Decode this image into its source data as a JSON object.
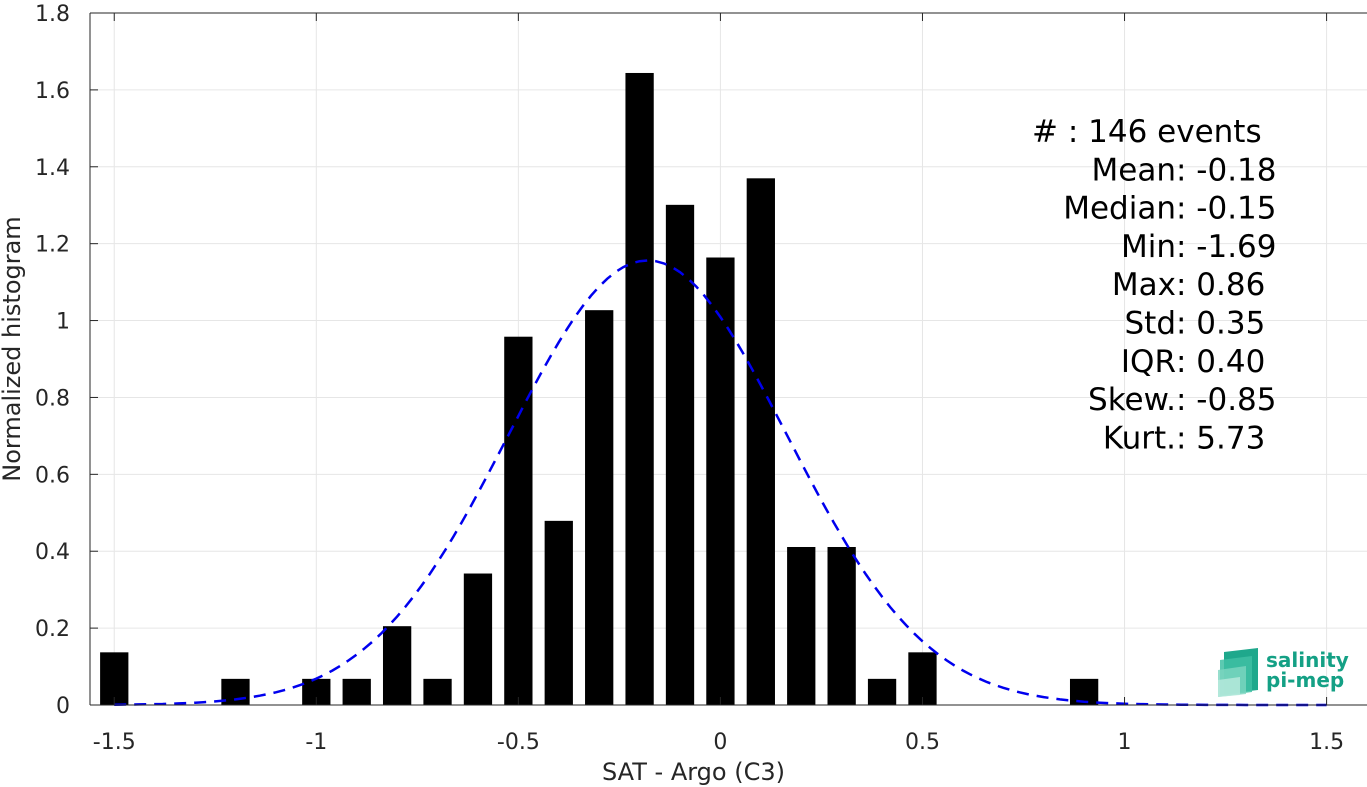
{
  "chart_data": {
    "type": "bar",
    "xlabel": "SAT - Argo (C3)",
    "ylabel": "Normalized histogram",
    "xlim": [
      -1.56,
      1.6
    ],
    "ylim": [
      0,
      1.8
    ],
    "xticks": [
      -1.5,
      -1,
      -0.5,
      0,
      0.5,
      1,
      1.5
    ],
    "xtick_labels": [
      "-1.5",
      "-1",
      "-0.5",
      "0",
      "0.5",
      "1",
      "1.5"
    ],
    "yticks": [
      0,
      0.2,
      0.4,
      0.6,
      0.8,
      1,
      1.2,
      1.4,
      1.6,
      1.8
    ],
    "ytick_labels": [
      "0",
      "0.2",
      "0.4",
      "0.6",
      "0.8",
      "1",
      "1.2",
      "1.4",
      "1.6",
      "1.8"
    ],
    "grid": true,
    "bar_width": 0.07,
    "bars": [
      {
        "x": -1.5,
        "y": 0.137
      },
      {
        "x": -1.2,
        "y": 0.068
      },
      {
        "x": -1.0,
        "y": 0.068
      },
      {
        "x": -0.9,
        "y": 0.068
      },
      {
        "x": -0.8,
        "y": 0.205
      },
      {
        "x": -0.7,
        "y": 0.068
      },
      {
        "x": -0.6,
        "y": 0.342
      },
      {
        "x": -0.5,
        "y": 0.958
      },
      {
        "x": -0.4,
        "y": 0.479
      },
      {
        "x": -0.3,
        "y": 1.027
      },
      {
        "x": -0.2,
        "y": 1.644
      },
      {
        "x": -0.1,
        "y": 1.301
      },
      {
        "x": 0.0,
        "y": 1.164
      },
      {
        "x": 0.1,
        "y": 1.37
      },
      {
        "x": 0.2,
        "y": 0.411
      },
      {
        "x": 0.3,
        "y": 0.411
      },
      {
        "x": 0.4,
        "y": 0.068
      },
      {
        "x": 0.5,
        "y": 0.137
      },
      {
        "x": 0.9,
        "y": 0.068
      }
    ],
    "fit_curve": {
      "style": "dashed",
      "color": "#0000ee",
      "mean": -0.18,
      "std": 0.345,
      "x_range": [
        -1.5,
        1.5
      ]
    },
    "stats_lines": [
      "#  : 146 events",
      "Mean : -0.18",
      "Median : -0.15",
      "Min : -1.69",
      "Max : 0.86",
      "Std : 0.35",
      "IQR : 0.40",
      "Skew. : -0.85",
      "Kurt. : 5.73"
    ],
    "colors": {
      "bars": "#000000",
      "grid": "#e6e6e6",
      "axis": "#262626",
      "fit": "#0000ee"
    }
  },
  "logo": {
    "line1": "salinity",
    "line2": "pi-mep",
    "color": "#14a085"
  }
}
